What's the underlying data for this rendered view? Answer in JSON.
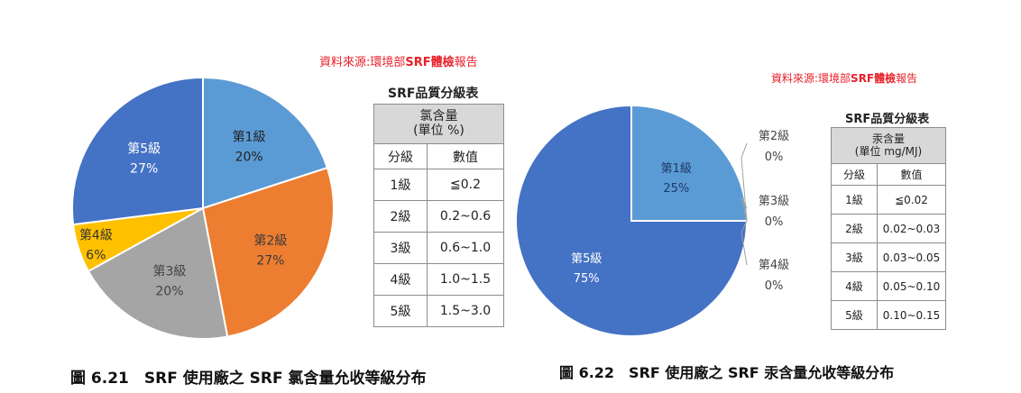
{
  "colors": {
    "grade1": "#5b9bd5",
    "grade2": "#ed7d31",
    "grade3": "#a5a5a5",
    "grade4": "#ffc000",
    "grade5": "#4472c4",
    "source": "#e8202a"
  },
  "left": {
    "source_prefix": "資料來源:環境部",
    "source_bold": "SRF體檢",
    "source_suffix": "報告",
    "table_title": "SRF品質分級表",
    "table_head_line1": "氯含量",
    "table_head_line2": "(單位 %)",
    "col_grade": "分級",
    "col_value": "數值",
    "rows": [
      {
        "grade": "1級",
        "value": "≦0.2"
      },
      {
        "grade": "2級",
        "value": "0.2~0.6"
      },
      {
        "grade": "3級",
        "value": "0.6~1.0"
      },
      {
        "grade": "4級",
        "value": "1.0~1.5"
      },
      {
        "grade": "5級",
        "value": "1.5~3.0"
      }
    ],
    "caption": "圖 6.21　SRF 使用廠之 SRF 氯含量允收等級分布"
  },
  "right": {
    "source_prefix": "資料來源:環境部",
    "source_bold": "SRF體檢",
    "source_suffix": "報告",
    "table_title": "SRF品質分級表",
    "table_head_line1": "汞含量",
    "table_head_line2": "(單位 mg/MJ)",
    "col_grade": "分級",
    "col_value": "數值",
    "rows": [
      {
        "grade": "1級",
        "value": "≦0.02"
      },
      {
        "grade": "2級",
        "value": "0.02~0.03"
      },
      {
        "grade": "3級",
        "value": "0.03~0.05"
      },
      {
        "grade": "4級",
        "value": "0.05~0.10"
      },
      {
        "grade": "5級",
        "value": "0.10~0.15"
      }
    ],
    "caption": "圖 6.22　SRF 使用廠之 SRF 汞含量允收等級分布"
  },
  "chart_data": [
    {
      "type": "pie",
      "title": "",
      "slices": [
        {
          "label": "第1級",
          "value": 20,
          "value_label": "20%",
          "color": "#5b9bd5"
        },
        {
          "label": "第2級",
          "value": 27,
          "value_label": "27%",
          "color": "#ed7d31"
        },
        {
          "label": "第3級",
          "value": 20,
          "value_label": "20%",
          "color": "#a5a5a5"
        },
        {
          "label": "第4級",
          "value": 6,
          "value_label": "6%",
          "color": "#ffc000"
        },
        {
          "label": "第5級",
          "value": 27,
          "value_label": "27%",
          "color": "#4472c4"
        }
      ]
    },
    {
      "type": "pie",
      "title": "",
      "slices": [
        {
          "label": "第1級",
          "value": 25,
          "value_label": "25%",
          "color": "#5b9bd5"
        },
        {
          "label": "第2級",
          "value": 0,
          "value_label": "0%",
          "color": "#ed7d31"
        },
        {
          "label": "第3級",
          "value": 0,
          "value_label": "0%",
          "color": "#a5a5a5"
        },
        {
          "label": "第4級",
          "value": 0,
          "value_label": "0%",
          "color": "#ffc000"
        },
        {
          "label": "第5級",
          "value": 75,
          "value_label": "75%",
          "color": "#4472c4"
        }
      ]
    }
  ]
}
